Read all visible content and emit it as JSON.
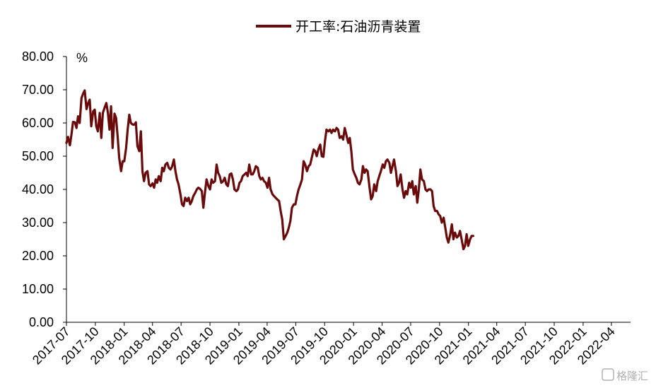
{
  "chart_data": {
    "type": "line",
    "unit": "%",
    "ylim": [
      0,
      80
    ],
    "yticks": [
      "0.00",
      "10.00",
      "20.00",
      "30.00",
      "40.00",
      "50.00",
      "60.00",
      "70.00",
      "80.00"
    ],
    "xticks": [
      "2017-07",
      "2017-10",
      "2018-01",
      "2018-04",
      "2018-07",
      "2018-10",
      "2019-01",
      "2019-04",
      "2019-07",
      "2019-10",
      "2020-01",
      "2020-04",
      "2020-07",
      "2020-10",
      "2021-01",
      "2021-04",
      "2021-07",
      "2021-10",
      "2022-01",
      "2022-04"
    ],
    "x_range": [
      "2017-07",
      "2022-06"
    ],
    "legend_position": "top-center",
    "color": "#6b0a0a",
    "series": [
      {
        "name": "开工率:石油沥青装置",
        "points": [
          [
            "2017-07-01",
            54.0
          ],
          [
            "2017-07-06",
            55.8
          ],
          [
            "2017-07-12",
            53.3
          ],
          [
            "2017-07-17",
            56.5
          ],
          [
            "2017-07-22",
            60.3
          ],
          [
            "2017-07-28",
            60.2
          ],
          [
            "2017-08-02",
            58.5
          ],
          [
            "2017-08-07",
            62.0
          ],
          [
            "2017-08-12",
            60.0
          ],
          [
            "2017-08-18",
            67.5
          ],
          [
            "2017-08-23",
            68.8
          ],
          [
            "2017-08-28",
            69.8
          ],
          [
            "2017-09-03",
            64.2
          ],
          [
            "2017-09-08",
            66.0
          ],
          [
            "2017-09-13",
            67.0
          ],
          [
            "2017-09-18",
            59.0
          ],
          [
            "2017-09-24",
            63.5
          ],
          [
            "2017-09-29",
            64.0
          ],
          [
            "2017-10-04",
            59.0
          ],
          [
            "2017-10-09",
            57.5
          ],
          [
            "2017-10-15",
            63.0
          ],
          [
            "2017-10-20",
            55.5
          ],
          [
            "2017-10-25",
            63.0
          ],
          [
            "2017-10-30",
            64.5
          ],
          [
            "2017-11-05",
            66.0
          ],
          [
            "2017-11-10",
            63.0
          ],
          [
            "2017-11-15",
            58.0
          ],
          [
            "2017-11-20",
            65.0
          ],
          [
            "2017-11-25",
            52.5
          ],
          [
            "2017-12-01",
            62.8
          ],
          [
            "2017-12-06",
            61.5
          ],
          [
            "2017-12-11",
            56.0
          ],
          [
            "2017-12-16",
            49.5
          ],
          [
            "2017-12-22",
            45.5
          ],
          [
            "2017-12-27",
            48.5
          ],
          [
            "2018-01-01",
            48.5
          ],
          [
            "2018-01-07",
            52.5
          ],
          [
            "2018-01-12",
            58.0
          ],
          [
            "2018-01-17",
            62.5
          ],
          [
            "2018-01-22",
            60.0
          ],
          [
            "2018-01-28",
            59.5
          ],
          [
            "2018-02-02",
            59.5
          ],
          [
            "2018-02-07",
            60.2
          ],
          [
            "2018-02-12",
            53.0
          ],
          [
            "2018-02-18",
            51.5
          ],
          [
            "2018-02-23",
            57.5
          ],
          [
            "2018-02-28",
            45.5
          ],
          [
            "2018-03-05",
            42.5
          ],
          [
            "2018-03-10",
            45.0
          ],
          [
            "2018-03-16",
            45.5
          ],
          [
            "2018-03-21",
            41.5
          ],
          [
            "2018-03-26",
            41.0
          ],
          [
            "2018-04-01",
            41.8
          ],
          [
            "2018-04-06",
            40.5
          ],
          [
            "2018-04-11",
            43.0
          ],
          [
            "2018-04-16",
            42.0
          ],
          [
            "2018-04-21",
            44.0
          ],
          [
            "2018-04-27",
            42.5
          ],
          [
            "2018-05-02",
            46.5
          ],
          [
            "2018-05-07",
            45.5
          ],
          [
            "2018-05-12",
            47.5
          ],
          [
            "2018-05-18",
            48.0
          ],
          [
            "2018-05-23",
            46.5
          ],
          [
            "2018-05-28",
            46.0
          ],
          [
            "2018-06-02",
            46.8
          ],
          [
            "2018-06-08",
            49.0
          ],
          [
            "2018-06-13",
            45.5
          ],
          [
            "2018-06-18",
            43.0
          ],
          [
            "2018-06-23",
            41.5
          ],
          [
            "2018-06-29",
            38.5
          ],
          [
            "2018-07-04",
            35.5
          ],
          [
            "2018-07-09",
            35.0
          ],
          [
            "2018-07-14",
            37.5
          ],
          [
            "2018-07-20",
            36.5
          ],
          [
            "2018-07-25",
            37.5
          ],
          [
            "2018-07-30",
            35.5
          ],
          [
            "2018-08-04",
            36.5
          ],
          [
            "2018-08-09",
            38.0
          ],
          [
            "2018-08-15",
            39.0
          ],
          [
            "2018-08-20",
            40.0
          ],
          [
            "2018-08-25",
            40.5
          ],
          [
            "2018-08-30",
            40.2
          ],
          [
            "2018-09-05",
            39.5
          ],
          [
            "2018-09-10",
            34.5
          ],
          [
            "2018-09-15",
            39.0
          ],
          [
            "2018-09-20",
            43.0
          ],
          [
            "2018-09-26",
            41.0
          ],
          [
            "2018-10-01",
            40.0
          ],
          [
            "2018-10-06",
            43.0
          ],
          [
            "2018-10-11",
            42.0
          ],
          [
            "2018-10-17",
            42.5
          ],
          [
            "2018-10-22",
            47.5
          ],
          [
            "2018-10-27",
            45.0
          ],
          [
            "2018-11-01",
            44.0
          ],
          [
            "2018-11-06",
            42.0
          ],
          [
            "2018-11-12",
            42.5
          ],
          [
            "2018-11-17",
            43.5
          ],
          [
            "2018-11-22",
            41.5
          ],
          [
            "2018-11-27",
            41.0
          ],
          [
            "2018-12-03",
            44.5
          ],
          [
            "2018-12-08",
            44.8
          ],
          [
            "2018-12-13",
            43.0
          ],
          [
            "2018-12-18",
            40.0
          ],
          [
            "2018-12-24",
            39.5
          ],
          [
            "2018-12-29",
            40.0
          ],
          [
            "2019-01-03",
            42.0
          ],
          [
            "2019-01-08",
            42.5
          ],
          [
            "2019-01-13",
            44.0
          ],
          [
            "2019-01-19",
            44.5
          ],
          [
            "2019-01-24",
            45.0
          ],
          [
            "2019-01-29",
            44.0
          ],
          [
            "2019-02-03",
            47.5
          ],
          [
            "2019-02-09",
            44.5
          ],
          [
            "2019-02-14",
            44.5
          ],
          [
            "2019-02-19",
            45.5
          ],
          [
            "2019-02-24",
            47.0
          ],
          [
            "2019-03-02",
            46.5
          ],
          [
            "2019-03-07",
            44.0
          ],
          [
            "2019-03-12",
            43.0
          ],
          [
            "2019-03-17",
            43.5
          ],
          [
            "2019-03-22",
            42.5
          ],
          [
            "2019-03-28",
            42.0
          ],
          [
            "2019-04-02",
            40.5
          ],
          [
            "2019-04-07",
            43.5
          ],
          [
            "2019-04-12",
            40.0
          ],
          [
            "2019-04-18",
            38.5
          ],
          [
            "2019-04-23",
            38.0
          ],
          [
            "2019-04-28",
            37.5
          ],
          [
            "2019-05-03",
            37.0
          ],
          [
            "2019-05-09",
            36.5
          ],
          [
            "2019-05-14",
            33.5
          ],
          [
            "2019-05-19",
            31.0
          ],
          [
            "2019-05-24",
            25.0
          ],
          [
            "2019-05-30",
            26.0
          ],
          [
            "2019-06-04",
            27.0
          ],
          [
            "2019-06-09",
            28.5
          ],
          [
            "2019-06-14",
            30.5
          ],
          [
            "2019-06-19",
            34.5
          ],
          [
            "2019-06-25",
            35.5
          ],
          [
            "2019-06-30",
            35.5
          ],
          [
            "2019-07-05",
            38.0
          ],
          [
            "2019-07-10",
            40.0
          ],
          [
            "2019-07-16",
            41.5
          ],
          [
            "2019-07-21",
            43.0
          ],
          [
            "2019-07-26",
            48.5
          ],
          [
            "2019-07-31",
            47.5
          ],
          [
            "2019-08-06",
            45.5
          ],
          [
            "2019-08-11",
            47.0
          ],
          [
            "2019-08-16",
            47.5
          ],
          [
            "2019-08-21",
            49.5
          ],
          [
            "2019-08-27",
            52.0
          ],
          [
            "2019-09-01",
            51.5
          ],
          [
            "2019-09-06",
            50.0
          ],
          [
            "2019-09-11",
            52.0
          ],
          [
            "2019-09-17",
            53.5
          ],
          [
            "2019-09-22",
            50.0
          ],
          [
            "2019-09-27",
            49.8
          ],
          [
            "2019-10-02",
            54.5
          ],
          [
            "2019-10-07",
            58.0
          ],
          [
            "2019-10-13",
            57.5
          ],
          [
            "2019-10-18",
            58.0
          ],
          [
            "2019-10-23",
            57.0
          ],
          [
            "2019-10-28",
            58.0
          ],
          [
            "2019-11-03",
            57.5
          ],
          [
            "2019-11-08",
            58.5
          ],
          [
            "2019-11-13",
            58.0
          ],
          [
            "2019-11-18",
            55.5
          ],
          [
            "2019-11-24",
            56.0
          ],
          [
            "2019-11-29",
            55.0
          ],
          [
            "2019-12-04",
            58.5
          ],
          [
            "2019-12-09",
            56.5
          ],
          [
            "2019-12-15",
            54.0
          ],
          [
            "2019-12-20",
            55.5
          ],
          [
            "2019-12-25",
            51.5
          ],
          [
            "2019-12-30",
            46.0
          ],
          [
            "2020-01-05",
            44.5
          ],
          [
            "2020-01-10",
            43.5
          ],
          [
            "2020-01-15",
            42.0
          ],
          [
            "2020-01-20",
            41.5
          ],
          [
            "2020-01-26",
            43.0
          ],
          [
            "2020-01-31",
            47.0
          ],
          [
            "2020-02-05",
            45.0
          ],
          [
            "2020-02-10",
            46.0
          ],
          [
            "2020-02-15",
            45.5
          ],
          [
            "2020-02-21",
            40.5
          ],
          [
            "2020-02-26",
            37.0
          ],
          [
            "2020-03-02",
            38.0
          ],
          [
            "2020-03-07",
            41.5
          ],
          [
            "2020-03-13",
            39.5
          ],
          [
            "2020-03-18",
            42.5
          ],
          [
            "2020-03-23",
            44.0
          ],
          [
            "2020-03-28",
            45.5
          ],
          [
            "2020-04-03",
            47.5
          ],
          [
            "2020-04-08",
            46.5
          ],
          [
            "2020-04-13",
            48.5
          ],
          [
            "2020-04-18",
            49.0
          ],
          [
            "2020-04-24",
            48.0
          ],
          [
            "2020-04-29",
            45.0
          ],
          [
            "2020-05-04",
            47.0
          ],
          [
            "2020-05-09",
            49.0
          ],
          [
            "2020-05-15",
            45.5
          ],
          [
            "2020-05-20",
            41.0
          ],
          [
            "2020-05-25",
            42.0
          ],
          [
            "2020-05-30",
            44.5
          ],
          [
            "2020-06-05",
            40.0
          ],
          [
            "2020-06-10",
            37.5
          ],
          [
            "2020-06-15",
            39.5
          ],
          [
            "2020-06-20",
            38.5
          ],
          [
            "2020-06-26",
            42.0
          ],
          [
            "2020-07-01",
            40.5
          ],
          [
            "2020-07-06",
            42.5
          ],
          [
            "2020-07-11",
            38.5
          ],
          [
            "2020-07-17",
            41.0
          ],
          [
            "2020-07-22",
            36.0
          ],
          [
            "2020-07-27",
            40.0
          ],
          [
            "2020-08-01",
            46.0
          ],
          [
            "2020-08-06",
            43.0
          ],
          [
            "2020-08-12",
            42.5
          ],
          [
            "2020-08-17",
            40.0
          ],
          [
            "2020-08-22",
            39.5
          ],
          [
            "2020-08-27",
            40.0
          ],
          [
            "2020-09-02",
            40.0
          ],
          [
            "2020-09-07",
            39.5
          ],
          [
            "2020-09-12",
            35.0
          ],
          [
            "2020-09-17",
            33.5
          ],
          [
            "2020-09-23",
            33.5
          ],
          [
            "2020-09-28",
            32.5
          ],
          [
            "2020-10-03",
            32.0
          ],
          [
            "2020-10-08",
            30.0
          ],
          [
            "2020-10-14",
            31.5
          ],
          [
            "2020-10-19",
            28.5
          ],
          [
            "2020-10-24",
            25.5
          ],
          [
            "2020-10-29",
            24.0
          ],
          [
            "2020-11-04",
            26.5
          ],
          [
            "2020-11-09",
            29.5
          ],
          [
            "2020-11-14",
            25.0
          ],
          [
            "2020-11-19",
            27.0
          ],
          [
            "2020-11-25",
            25.5
          ],
          [
            "2020-11-30",
            26.0
          ],
          [
            "2020-12-05",
            27.5
          ],
          [
            "2020-12-10",
            25.0
          ],
          [
            "2020-12-16",
            22.0
          ],
          [
            "2020-12-21",
            23.0
          ],
          [
            "2020-12-26",
            26.5
          ],
          [
            "2020-12-31",
            23.0
          ],
          [
            "2021-01-06",
            25.0
          ],
          [
            "2021-01-11",
            26.0
          ],
          [
            "2021-01-16",
            26.0
          ]
        ]
      }
    ]
  },
  "watermark": "格隆汇"
}
